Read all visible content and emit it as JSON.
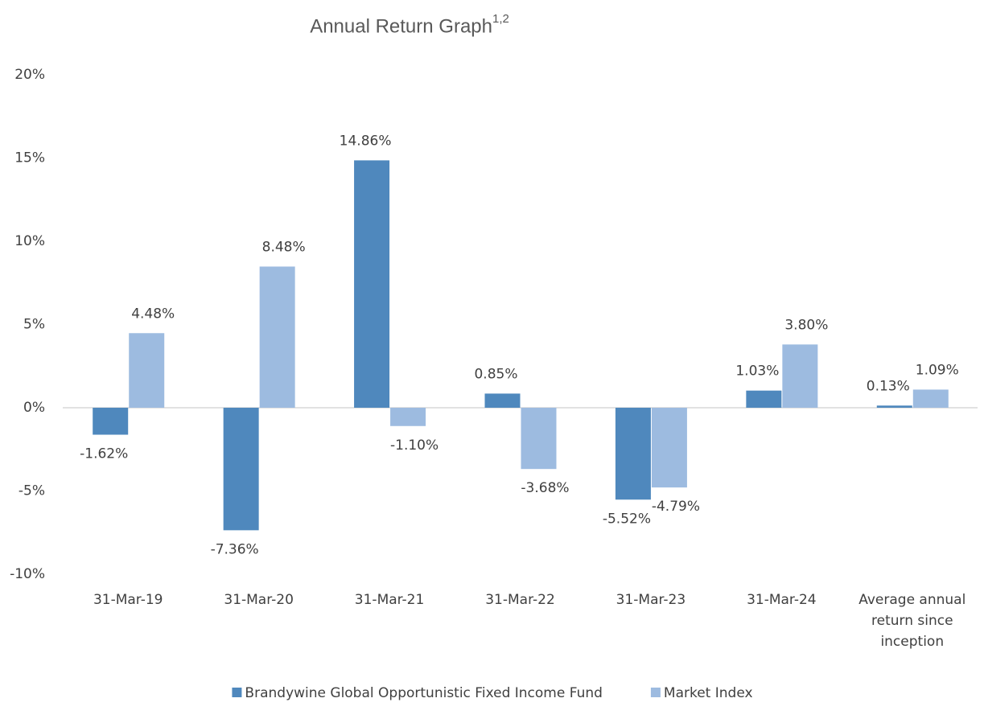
{
  "chart_data": {
    "type": "bar",
    "title": "Annual Return Graph",
    "title_superscript": "1,2",
    "categories": [
      "31-Mar-19",
      "31-Mar-20",
      "31-Mar-21",
      "31-Mar-22",
      "31-Mar-23",
      "31-Mar-24",
      "Average annual return since inception"
    ],
    "series": [
      {
        "name": "Brandywine Global Opportunistic Fixed Income Fund",
        "color": "#4f88bd",
        "values": [
          -1.62,
          -7.36,
          14.86,
          0.85,
          -5.52,
          1.03,
          0.13
        ],
        "value_labels": [
          "-1.62%",
          "-7.36%",
          "14.86%",
          "0.85%",
          "-5.52%",
          "1.03%",
          "0.13%"
        ]
      },
      {
        "name": "Market Index",
        "color": "#9dbbe0",
        "values": [
          4.48,
          8.48,
          -1.1,
          -3.68,
          -4.79,
          3.8,
          1.09
        ],
        "value_labels": [
          "4.48%",
          "8.48%",
          "-1.10%",
          "-3.68%",
          "-4.79%",
          "3.80%",
          "1.09%"
        ]
      }
    ],
    "ylim": [
      -10,
      20
    ],
    "yticks": [
      {
        "value": -10,
        "label": "-10%"
      },
      {
        "value": -5,
        "label": "-5%"
      },
      {
        "value": 0,
        "label": "0%"
      },
      {
        "value": 5,
        "label": "5%"
      },
      {
        "value": 10,
        "label": "10%"
      },
      {
        "value": 15,
        "label": "15%"
      },
      {
        "value": 20,
        "label": "20%"
      }
    ],
    "grid": false,
    "legend": "bottom"
  }
}
